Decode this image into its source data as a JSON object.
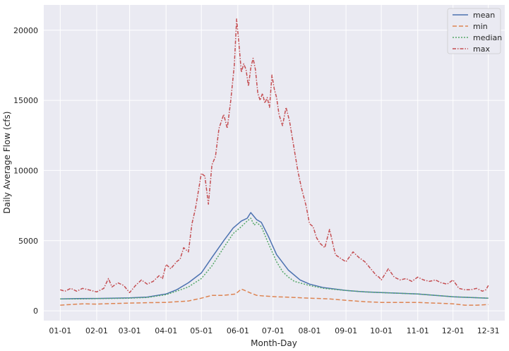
{
  "chart_data": {
    "type": "line",
    "title": "",
    "xlabel": "Month-Day",
    "ylabel": "Daily Average Flow (cfs)",
    "x_tick_labels": [
      "01-01",
      "02-01",
      "03-01",
      "04-01",
      "05-01",
      "06-01",
      "07-01",
      "08-01",
      "09-01",
      "10-01",
      "11-01",
      "12-01",
      "12-31"
    ],
    "x_tick_days": [
      1,
      32,
      60,
      91,
      121,
      152,
      182,
      213,
      244,
      274,
      305,
      335,
      365
    ],
    "xlim": [
      -13,
      379
    ],
    "ylim": [
      -700,
      21800
    ],
    "y_ticks": [
      0,
      5000,
      10000,
      15000,
      20000
    ],
    "grid": true,
    "legend_position": "top-right",
    "series": [
      {
        "name": "mean",
        "color": "#4c72b0",
        "dash": "",
        "day": [
          1,
          15,
          32,
          45,
          60,
          75,
          91,
          100,
          110,
          121,
          130,
          140,
          148,
          155,
          160,
          163,
          168,
          172,
          178,
          185,
          195,
          205,
          213,
          225,
          244,
          260,
          274,
          290,
          305,
          320,
          335,
          350,
          365
        ],
        "values": [
          850,
          870,
          880,
          900,
          920,
          980,
          1200,
          1500,
          2000,
          2700,
          3800,
          5000,
          5900,
          6400,
          6600,
          7000,
          6500,
          6300,
          5300,
          4000,
          2900,
          2200,
          1900,
          1650,
          1450,
          1350,
          1300,
          1250,
          1200,
          1100,
          1000,
          950,
          900
        ]
      },
      {
        "name": "min",
        "color": "#dd8452",
        "dash": "6,3",
        "day": [
          1,
          10,
          20,
          32,
          45,
          60,
          75,
          91,
          100,
          110,
          121,
          130,
          140,
          150,
          155,
          158,
          162,
          168,
          175,
          185,
          200,
          213,
          230,
          244,
          260,
          274,
          290,
          305,
          320,
          335,
          345,
          355,
          365
        ],
        "values": [
          400,
          450,
          500,
          480,
          520,
          550,
          580,
          600,
          650,
          700,
          900,
          1100,
          1100,
          1200,
          1550,
          1450,
          1300,
          1100,
          1050,
          1000,
          950,
          900,
          850,
          750,
          650,
          600,
          600,
          600,
          550,
          500,
          400,
          400,
          450
        ]
      },
      {
        "name": "median",
        "color": "#55a868",
        "dash": "2,2",
        "day": [
          1,
          20,
          32,
          45,
          60,
          75,
          91,
          100,
          110,
          121,
          130,
          140,
          148,
          155,
          160,
          163,
          166,
          168,
          172,
          178,
          185,
          190,
          195,
          200,
          213,
          225,
          244,
          260,
          274,
          290,
          305,
          320,
          335,
          350,
          365
        ],
        "values": [
          850,
          850,
          870,
          880,
          900,
          950,
          1150,
          1400,
          1700,
          2300,
          3200,
          4500,
          5500,
          6000,
          6400,
          6600,
          6100,
          6300,
          6000,
          4800,
          3500,
          2800,
          2400,
          2100,
          1800,
          1600,
          1450,
          1350,
          1300,
          1250,
          1200,
          1100,
          1000,
          950,
          900
        ]
      },
      {
        "name": "max",
        "color": "#c44e52",
        "dash": "5,2,1.5,2",
        "day": [
          1,
          5,
          10,
          15,
          20,
          25,
          32,
          38,
          42,
          45,
          50,
          55,
          60,
          65,
          70,
          75,
          80,
          85,
          88,
          91,
          95,
          100,
          103,
          106,
          110,
          113,
          116,
          119,
          121,
          124,
          127,
          130,
          133,
          136,
          140,
          143,
          146,
          149,
          151,
          153,
          155,
          157,
          159,
          161,
          163,
          165,
          167,
          169,
          171,
          173,
          175,
          177,
          179,
          181,
          183,
          185,
          187,
          190,
          193,
          196,
          200,
          203,
          206,
          210,
          213,
          216,
          219,
          222,
          226,
          230,
          235,
          240,
          244,
          250,
          255,
          260,
          265,
          270,
          272,
          274,
          280,
          285,
          290,
          295,
          300,
          305,
          310,
          315,
          320,
          325,
          330,
          335,
          340,
          345,
          350,
          355,
          360,
          363,
          365
        ],
        "values": [
          1500,
          1400,
          1600,
          1400,
          1600,
          1500,
          1350,
          1600,
          2300,
          1700,
          2000,
          1800,
          1300,
          1800,
          2200,
          1900,
          2100,
          2500,
          2300,
          3300,
          3000,
          3500,
          3700,
          4500,
          4200,
          6200,
          7300,
          8800,
          9800,
          9600,
          7600,
          10400,
          11000,
          13000,
          14000,
          13000,
          15000,
          17500,
          20800,
          19000,
          17000,
          17600,
          17200,
          16000,
          17300,
          18000,
          17200,
          15500,
          15000,
          15500,
          14800,
          15200,
          14500,
          16800,
          15800,
          15200,
          14000,
          13200,
          14500,
          13500,
          11500,
          10000,
          8800,
          7500,
          6200,
          6000,
          5200,
          4800,
          4500,
          5800,
          4000,
          3700,
          3500,
          4200,
          3800,
          3500,
          3000,
          2500,
          2400,
          2200,
          3000,
          2400,
          2200,
          2300,
          2100,
          2400,
          2200,
          2100,
          2200,
          2000,
          1900,
          2200,
          1600,
          1500,
          1500,
          1600,
          1400,
          1500,
          1800
        ]
      }
    ]
  }
}
